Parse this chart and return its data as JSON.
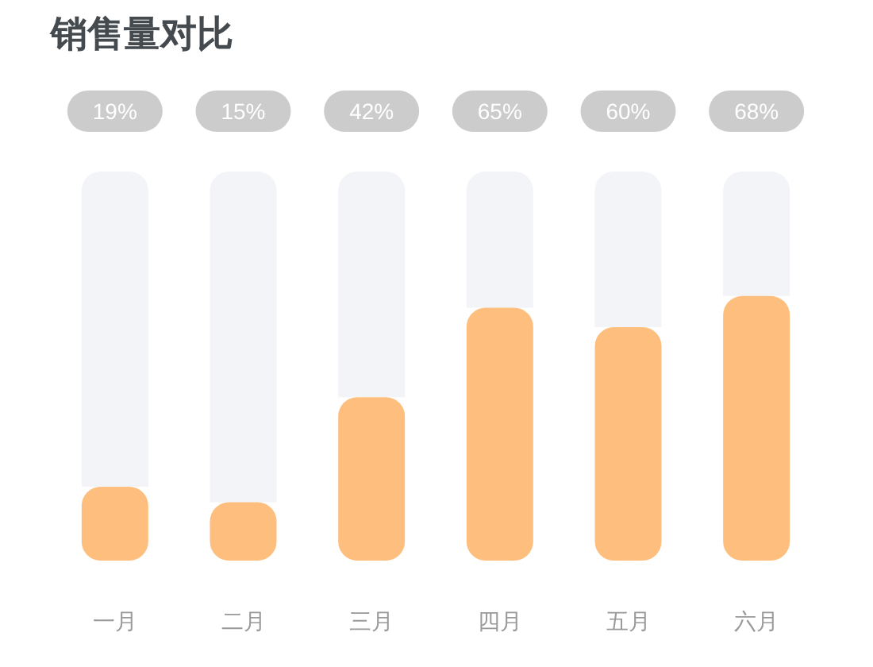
{
  "chart_data": {
    "type": "bar",
    "title": "销售量对比",
    "categories": [
      "一月",
      "二月",
      "三月",
      "四月",
      "五月",
      "六月"
    ],
    "ylim": [
      0,
      100
    ],
    "tick_labels": "x",
    "stacked": true,
    "series": [
      {
        "color": "#fdbe7e",
        "values": [
          19,
          15,
          42,
          65,
          60,
          68
        ],
        "value_labels": [
          "19%",
          "15%",
          "42%",
          "65%",
          "60%",
          "68%"
        ]
      },
      {
        "color": "#f3f4f8",
        "values": [
          81,
          85,
          58,
          35,
          40,
          32
        ]
      }
    ]
  }
}
